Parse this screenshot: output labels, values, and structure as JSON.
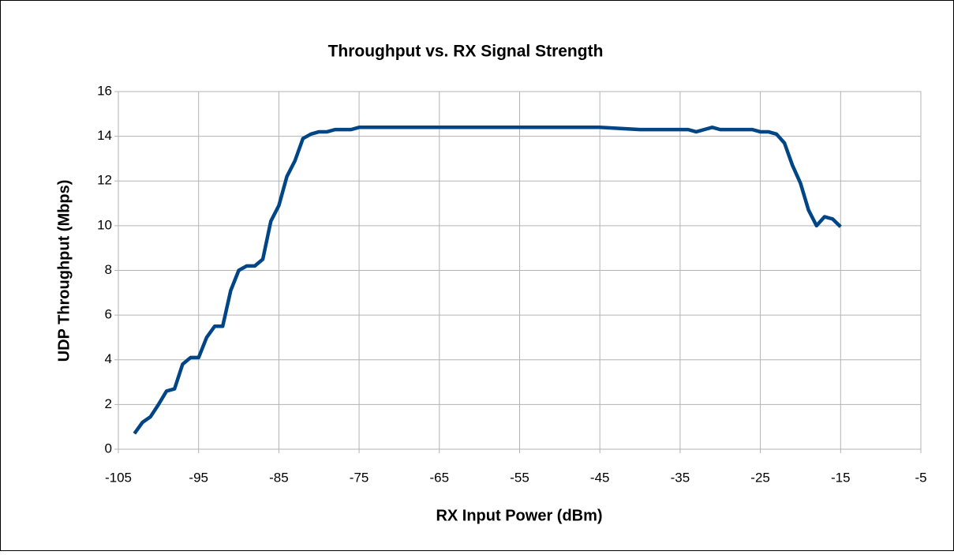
{
  "chart_data": {
    "type": "line",
    "title": "Throughput vs. RX Signal Strength",
    "xlabel": "RX Input Power (dBm)",
    "ylabel": "UDP Throughput (Mbps)",
    "x": [
      -103,
      -102,
      -101,
      -100,
      -99,
      -98,
      -97,
      -96,
      -95,
      -94,
      -93,
      -92,
      -91,
      -90,
      -89,
      -88,
      -87,
      -86,
      -85,
      -84,
      -83,
      -82,
      -81,
      -80,
      -79,
      -78,
      -77,
      -76,
      -75,
      -70,
      -65,
      -60,
      -55,
      -50,
      -45,
      -40,
      -35,
      -34,
      -33,
      -32,
      -31,
      -30,
      -29,
      -28,
      -27,
      -26,
      -25,
      -24,
      -23,
      -22,
      -21,
      -20,
      -19,
      -18,
      -17,
      -16,
      -15
    ],
    "series": [
      {
        "name": "UDP Throughput",
        "color": "#004586",
        "values": [
          0.7,
          1.2,
          1.45,
          2.0,
          2.6,
          2.7,
          3.8,
          4.1,
          4.1,
          5.0,
          5.5,
          5.5,
          7.1,
          8.0,
          8.2,
          8.2,
          8.5,
          10.2,
          10.9,
          12.2,
          12.9,
          13.9,
          14.1,
          14.2,
          14.2,
          14.3,
          14.3,
          14.3,
          14.4,
          14.4,
          14.4,
          14.4,
          14.4,
          14.4,
          14.4,
          14.3,
          14.3,
          14.3,
          14.2,
          14.3,
          14.4,
          14.3,
          14.3,
          14.3,
          14.3,
          14.3,
          14.2,
          14.2,
          14.1,
          13.7,
          12.7,
          11.9,
          10.7,
          10.0,
          10.4,
          10.3,
          9.95
        ]
      }
    ],
    "xlim": [
      -105,
      -5
    ],
    "xticks": [
      -105,
      -95,
      -85,
      -75,
      -65,
      -55,
      -45,
      -35,
      -25,
      -15,
      -5
    ],
    "ylim": [
      0,
      16
    ],
    "yticks": [
      0,
      2,
      4,
      6,
      8,
      10,
      12,
      14,
      16
    ],
    "grid": true
  }
}
